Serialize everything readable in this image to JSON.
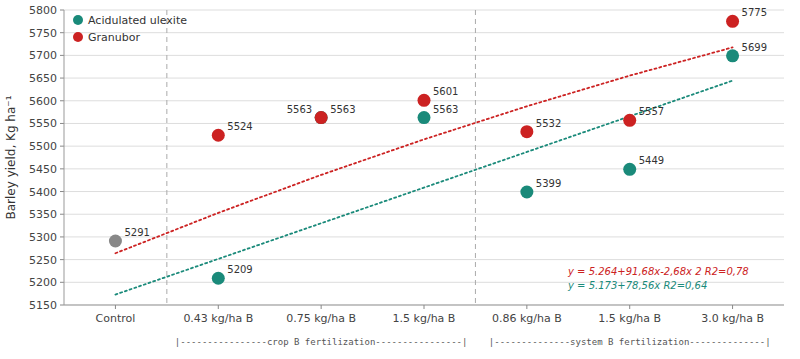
{
  "chart_data": {
    "type": "scatter",
    "categories": [
      "Control",
      "0.43 kg/ha B",
      "0.75 kg/ha B",
      "1.5 kg/ha B",
      "0.86 kg/ha B",
      "1.5 kg/ha B",
      "3.0 kg/ha B"
    ],
    "ylabel": "Barley yield, Kg ha⁻¹",
    "ylim": [
      5150,
      5800
    ],
    "yticks": [
      5150,
      5200,
      5250,
      5300,
      5350,
      5400,
      5450,
      5500,
      5550,
      5600,
      5650,
      5700,
      5750,
      5800
    ],
    "grid": true,
    "legend": "upper left",
    "data_labels": true,
    "series": [
      {
        "color": "#888888",
        "values": [
          5291,
          null,
          null,
          null,
          null,
          null,
          null
        ]
      },
      {
        "name": "Acidulated ulexite",
        "color": "#1a8a7a",
        "values": [
          null,
          5209,
          5563,
          5563,
          5399,
          5449,
          5699
        ]
      },
      {
        "name": "Granubor",
        "color": "#cc2222",
        "values": [
          null,
          5524,
          5563,
          5601,
          5532,
          5557,
          5775
        ]
      },
      {
        "type": "line",
        "line_style": "dotted",
        "color": "#cc2222",
        "values": [
          5264,
          5353,
          5436.64,
          5514.92,
          5587.84,
          5655.4,
          5717.6
        ]
      },
      {
        "type": "line",
        "line_style": "dotted",
        "color": "#1a8a7a",
        "values": [
          5173,
          5251.56,
          5330.12,
          5408.68,
          5487.24,
          5565.8,
          5644.36
        ]
      }
    ],
    "annotations": [
      "y = 5.264+91,68x-2,68x 2 R2=0,78",
      "y = 5.173+78,56x R2=0,64",
      "|----------------crop B fertilization----------------|",
      "|--------------system B fertilization--------------|"
    ]
  }
}
